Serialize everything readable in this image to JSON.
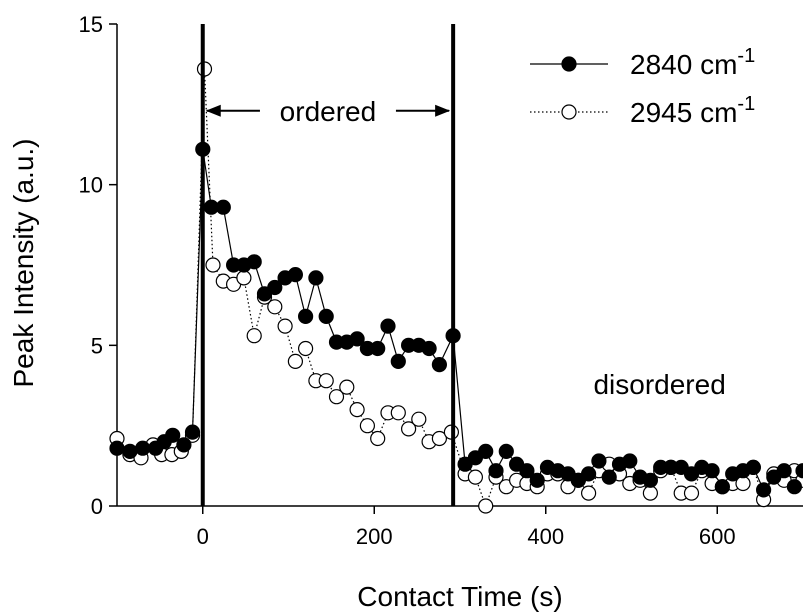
{
  "chart_data": {
    "type": "scatter",
    "title": "",
    "xlabel": "Contact Time (s)",
    "ylabel": "Peak Intensity (a.u.)",
    "xlim": [
      -100,
      700
    ],
    "ylim": [
      0,
      15
    ],
    "x_ticks": [
      0,
      200,
      400,
      600
    ],
    "y_ticks": [
      0,
      5,
      10,
      15
    ],
    "grid": false,
    "legend_position": "top-right",
    "series": [
      {
        "name": "2840 cm",
        "name_sup": "-1",
        "marker": "filled-circle",
        "line": "solid",
        "color": "#000000",
        "points": [
          [
            -100,
            1.8
          ],
          [
            -85,
            1.7
          ],
          [
            -70,
            1.8
          ],
          [
            -55,
            1.8
          ],
          [
            -45,
            2.0
          ],
          [
            -35,
            2.2
          ],
          [
            -22,
            1.9
          ],
          [
            -12,
            2.3
          ],
          [
            0,
            11.1
          ],
          [
            10,
            9.3
          ],
          [
            24,
            9.3
          ],
          [
            36,
            7.5
          ],
          [
            48,
            7.5
          ],
          [
            60,
            7.6
          ],
          [
            72,
            6.6
          ],
          [
            84,
            6.8
          ],
          [
            96,
            7.1
          ],
          [
            108,
            7.2
          ],
          [
            120,
            5.9
          ],
          [
            132,
            7.1
          ],
          [
            144,
            5.9
          ],
          [
            156,
            5.1
          ],
          [
            168,
            5.1
          ],
          [
            180,
            5.2
          ],
          [
            192,
            4.9
          ],
          [
            204,
            4.9
          ],
          [
            216,
            5.6
          ],
          [
            228,
            4.5
          ],
          [
            240,
            5.0
          ],
          [
            252,
            5.0
          ],
          [
            264,
            4.9
          ],
          [
            276,
            4.4
          ],
          [
            292,
            5.3
          ],
          [
            306,
            1.3
          ],
          [
            318,
            1.5
          ],
          [
            330,
            1.7
          ],
          [
            342,
            1.1
          ],
          [
            354,
            1.7
          ],
          [
            366,
            1.3
          ],
          [
            378,
            1.1
          ],
          [
            390,
            0.8
          ],
          [
            402,
            1.2
          ],
          [
            414,
            1.1
          ],
          [
            426,
            1.0
          ],
          [
            438,
            0.8
          ],
          [
            450,
            1.0
          ],
          [
            462,
            1.4
          ],
          [
            474,
            0.9
          ],
          [
            486,
            1.3
          ],
          [
            498,
            1.4
          ],
          [
            510,
            0.9
          ],
          [
            522,
            0.8
          ],
          [
            534,
            1.2
          ],
          [
            546,
            1.2
          ],
          [
            558,
            1.2
          ],
          [
            570,
            1.0
          ],
          [
            582,
            1.2
          ],
          [
            594,
            1.1
          ],
          [
            606,
            0.6
          ],
          [
            618,
            1.0
          ],
          [
            630,
            1.1
          ],
          [
            642,
            1.2
          ],
          [
            654,
            0.5
          ],
          [
            666,
            0.9
          ],
          [
            678,
            1.1
          ],
          [
            690,
            0.6
          ],
          [
            700,
            1.1
          ]
        ]
      },
      {
        "name": "2945 cm",
        "name_sup": "-1",
        "marker": "open-circle",
        "line": "dotted",
        "color": "#000000",
        "points": [
          [
            -100,
            2.1
          ],
          [
            -85,
            1.6
          ],
          [
            -72,
            1.5
          ],
          [
            -58,
            1.9
          ],
          [
            -48,
            1.6
          ],
          [
            -36,
            1.6
          ],
          [
            -25,
            1.7
          ],
          [
            -12,
            2.2
          ],
          [
            2,
            13.6
          ],
          [
            12,
            7.5
          ],
          [
            24,
            7.0
          ],
          [
            36,
            6.9
          ],
          [
            48,
            7.1
          ],
          [
            60,
            5.3
          ],
          [
            72,
            6.5
          ],
          [
            84,
            6.2
          ],
          [
            96,
            5.6
          ],
          [
            108,
            4.5
          ],
          [
            120,
            4.9
          ],
          [
            132,
            3.9
          ],
          [
            144,
            3.9
          ],
          [
            156,
            3.4
          ],
          [
            168,
            3.7
          ],
          [
            180,
            3.0
          ],
          [
            192,
            2.5
          ],
          [
            204,
            2.1
          ],
          [
            216,
            2.9
          ],
          [
            228,
            2.9
          ],
          [
            240,
            2.4
          ],
          [
            252,
            2.7
          ],
          [
            264,
            2.0
          ],
          [
            276,
            2.1
          ],
          [
            290,
            2.3
          ],
          [
            306,
            1.0
          ],
          [
            318,
            0.9
          ],
          [
            330,
            0.0
          ],
          [
            342,
            0.9
          ],
          [
            354,
            0.6
          ],
          [
            366,
            0.8
          ],
          [
            378,
            0.7
          ],
          [
            390,
            0.6
          ],
          [
            402,
            1.0
          ],
          [
            414,
            1.0
          ],
          [
            426,
            0.6
          ],
          [
            438,
            0.8
          ],
          [
            450,
            0.4
          ],
          [
            462,
            1.1
          ],
          [
            474,
            1.3
          ],
          [
            486,
            1.0
          ],
          [
            498,
            0.7
          ],
          [
            510,
            0.8
          ],
          [
            522,
            0.4
          ],
          [
            534,
            1.1
          ],
          [
            546,
            1.2
          ],
          [
            558,
            0.4
          ],
          [
            570,
            0.4
          ],
          [
            582,
            1.1
          ],
          [
            594,
            0.7
          ],
          [
            606,
            0.6
          ],
          [
            618,
            0.7
          ],
          [
            630,
            0.7
          ],
          [
            642,
            1.2
          ],
          [
            654,
            0.2
          ],
          [
            666,
            1.0
          ],
          [
            678,
            0.8
          ],
          [
            690,
            1.1
          ],
          [
            700,
            0.8
          ]
        ]
      }
    ],
    "vertical_lines": [
      0,
      292
    ],
    "annotations": [
      {
        "text": "ordered",
        "type": "double-arrow",
        "from": 0,
        "to": 292,
        "y": 12.3
      },
      {
        "text": "disordered",
        "type": "label",
        "x": 430,
        "y": 3.8
      }
    ]
  }
}
